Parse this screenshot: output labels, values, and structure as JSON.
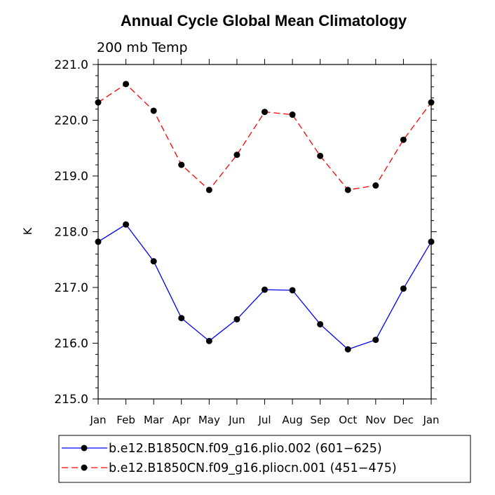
{
  "chart_data": {
    "type": "line",
    "title": "Annual Cycle Global Mean Climatology",
    "subtitle": "200 mb Temp",
    "ylabel": "K",
    "xlabel": "",
    "ylim": [
      215.0,
      221.0
    ],
    "yticks": [
      "215.0",
      "216.0",
      "217.0",
      "218.0",
      "219.0",
      "220.0",
      "221.0"
    ],
    "categories": [
      "Jan",
      "Feb",
      "Mar",
      "Apr",
      "May",
      "Jun",
      "Jul",
      "Aug",
      "Sep",
      "Oct",
      "Nov",
      "Dec",
      "Jan"
    ],
    "grid": false,
    "legend_position": "bottom",
    "series": [
      {
        "name": "b.e12.B1850CN.f09_g16.plio.002 (601−625)",
        "color": "#0000ff",
        "dash": "solid",
        "values": [
          217.82,
          218.13,
          217.47,
          216.45,
          216.04,
          216.43,
          216.96,
          216.95,
          216.34,
          215.89,
          216.06,
          216.98,
          217.82
        ]
      },
      {
        "name": "b.e12.B1850CN.f09_g16.pliocn.001 (451−475)",
        "color": "#ff0000",
        "dash": "dashed",
        "values": [
          220.32,
          220.65,
          220.17,
          219.2,
          218.75,
          219.38,
          220.15,
          220.1,
          219.36,
          218.75,
          218.83,
          219.65,
          220.32
        ]
      }
    ]
  }
}
